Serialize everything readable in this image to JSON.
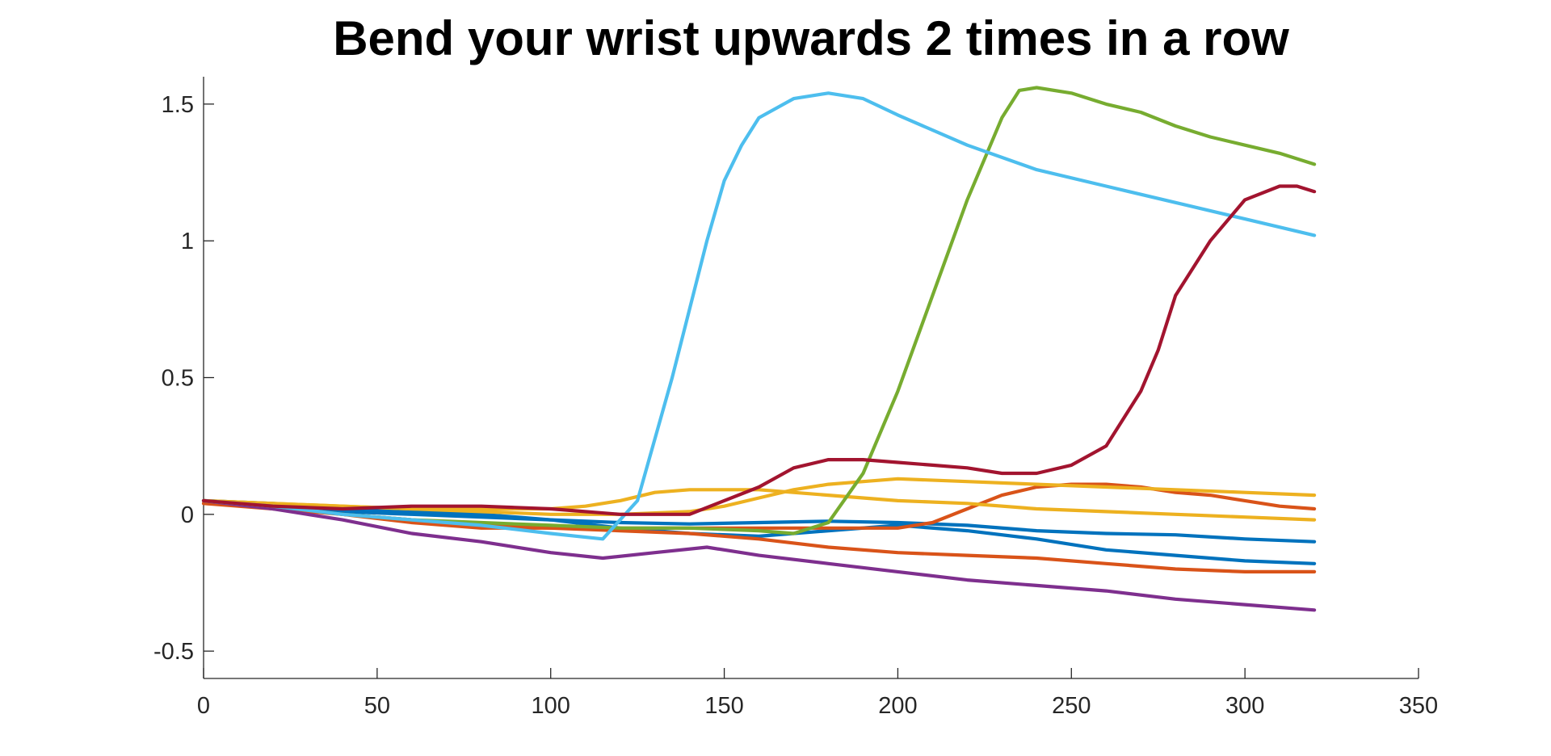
{
  "chart_data": {
    "type": "line",
    "title": "Bend your wrist upwards 2 times in a row",
    "xlabel": "",
    "ylabel": "",
    "xlim": [
      0,
      350
    ],
    "ylim": [
      -0.6,
      1.6
    ],
    "xticks": [
      0,
      50,
      100,
      150,
      200,
      250,
      300,
      350
    ],
    "xtick_labels": [
      "0",
      "50",
      "100",
      "150",
      "200",
      "250",
      "300",
      "350"
    ],
    "yticks": [
      -0.5,
      0,
      0.5,
      1,
      1.5
    ],
    "ytick_labels": [
      "-0.5",
      "0",
      "0.5",
      "1",
      "1.5"
    ],
    "grid": false,
    "legend": "none",
    "series": [
      {
        "color": "#0072BD",
        "x": [
          0,
          20,
          40,
          60,
          80,
          100,
          120,
          140,
          160,
          180,
          200,
          220,
          240,
          260,
          280,
          300,
          320
        ],
        "y": [
          0.05,
          0.03,
          0.01,
          0.0,
          -0.01,
          -0.02,
          -0.03,
          -0.035,
          -0.03,
          -0.025,
          -0.03,
          -0.04,
          -0.06,
          -0.07,
          -0.075,
          -0.09,
          -0.1
        ]
      },
      {
        "color": "#0072BD",
        "x": [
          0,
          20,
          40,
          60,
          80,
          100,
          120,
          140,
          160,
          180,
          200,
          220,
          240,
          260,
          280,
          300,
          320
        ],
        "y": [
          0.05,
          0.04,
          0.02,
          0.01,
          0.0,
          -0.02,
          -0.05,
          -0.07,
          -0.08,
          -0.06,
          -0.04,
          -0.06,
          -0.09,
          -0.13,
          -0.15,
          -0.17,
          -0.18
        ]
      },
      {
        "color": "#D95319",
        "x": [
          0,
          20,
          40,
          60,
          80,
          100,
          120,
          140,
          160,
          180,
          200,
          220,
          240,
          260,
          280,
          300,
          320
        ],
        "y": [
          0.04,
          0.02,
          0.0,
          -0.02,
          -0.04,
          -0.05,
          -0.06,
          -0.07,
          -0.09,
          -0.12,
          -0.14,
          -0.15,
          -0.16,
          -0.18,
          -0.2,
          -0.21,
          -0.21
        ]
      },
      {
        "color": "#D95319",
        "x": [
          0,
          20,
          40,
          60,
          80,
          100,
          120,
          140,
          160,
          180,
          200,
          210,
          220,
          230,
          240,
          250,
          260,
          270,
          280,
          290,
          300,
          310,
          320
        ],
        "y": [
          0.04,
          0.03,
          0.0,
          -0.03,
          -0.05,
          -0.05,
          -0.05,
          -0.05,
          -0.05,
          -0.05,
          -0.05,
          -0.03,
          0.02,
          0.07,
          0.1,
          0.11,
          0.11,
          0.1,
          0.08,
          0.07,
          0.05,
          0.03,
          0.02
        ]
      },
      {
        "color": "#EDB120",
        "x": [
          0,
          20,
          40,
          60,
          80,
          100,
          110,
          120,
          130,
          140,
          150,
          160,
          170,
          180,
          190,
          200,
          220,
          240,
          260,
          280,
          300,
          320
        ],
        "y": [
          0.05,
          0.04,
          0.03,
          0.02,
          0.02,
          0.02,
          0.03,
          0.05,
          0.08,
          0.09,
          0.09,
          0.09,
          0.08,
          0.07,
          0.06,
          0.05,
          0.04,
          0.02,
          0.01,
          0.0,
          -0.01,
          -0.02
        ]
      },
      {
        "color": "#EDB120",
        "x": [
          0,
          20,
          40,
          60,
          80,
          100,
          120,
          140,
          150,
          160,
          170,
          180,
          190,
          200,
          220,
          240,
          260,
          280,
          300,
          320
        ],
        "y": [
          0.05,
          0.04,
          0.03,
          0.02,
          0.01,
          0.0,
          0.0,
          0.01,
          0.03,
          0.06,
          0.09,
          0.11,
          0.12,
          0.13,
          0.12,
          0.11,
          0.1,
          0.09,
          0.08,
          0.07
        ]
      },
      {
        "color": "#7E2F8E",
        "x": [
          0,
          20,
          40,
          60,
          80,
          100,
          115,
          130,
          145,
          160,
          180,
          200,
          220,
          240,
          260,
          280,
          300,
          320
        ],
        "y": [
          0.05,
          0.02,
          -0.02,
          -0.07,
          -0.1,
          -0.14,
          -0.16,
          -0.14,
          -0.12,
          -0.15,
          -0.18,
          -0.21,
          -0.24,
          -0.26,
          -0.28,
          -0.31,
          -0.33,
          -0.35
        ]
      },
      {
        "color": "#77AC30",
        "x": [
          0,
          20,
          40,
          60,
          80,
          100,
          120,
          140,
          160,
          170,
          180,
          190,
          200,
          210,
          220,
          225,
          230,
          235,
          240,
          250,
          260,
          270,
          280,
          290,
          300,
          310,
          320
        ],
        "y": [
          0.05,
          0.03,
          0.0,
          -0.02,
          -0.03,
          -0.04,
          -0.05,
          -0.05,
          -0.06,
          -0.07,
          -0.03,
          0.15,
          0.45,
          0.8,
          1.15,
          1.3,
          1.45,
          1.55,
          1.56,
          1.54,
          1.5,
          1.47,
          1.42,
          1.38,
          1.35,
          1.32,
          1.28
        ]
      },
      {
        "color": "#4DBEEE",
        "x": [
          0,
          20,
          40,
          60,
          80,
          100,
          115,
          125,
          135,
          145,
          150,
          155,
          160,
          170,
          180,
          190,
          200,
          220,
          240,
          260,
          280,
          300,
          320
        ],
        "y": [
          0.05,
          0.03,
          0.0,
          -0.02,
          -0.04,
          -0.07,
          -0.09,
          0.05,
          0.5,
          1.0,
          1.22,
          1.35,
          1.45,
          1.52,
          1.54,
          1.52,
          1.46,
          1.35,
          1.26,
          1.2,
          1.14,
          1.08,
          1.02
        ]
      },
      {
        "color": "#A2142F",
        "x": [
          0,
          20,
          40,
          60,
          80,
          100,
          120,
          140,
          160,
          170,
          180,
          190,
          200,
          210,
          220,
          230,
          240,
          250,
          260,
          270,
          275,
          280,
          290,
          300,
          310,
          315,
          320
        ],
        "y": [
          0.05,
          0.03,
          0.02,
          0.03,
          0.03,
          0.02,
          0.0,
          0.0,
          0.1,
          0.17,
          0.2,
          0.2,
          0.19,
          0.18,
          0.17,
          0.15,
          0.15,
          0.18,
          0.25,
          0.45,
          0.6,
          0.8,
          1.0,
          1.15,
          1.2,
          1.2,
          1.18
        ]
      }
    ]
  }
}
